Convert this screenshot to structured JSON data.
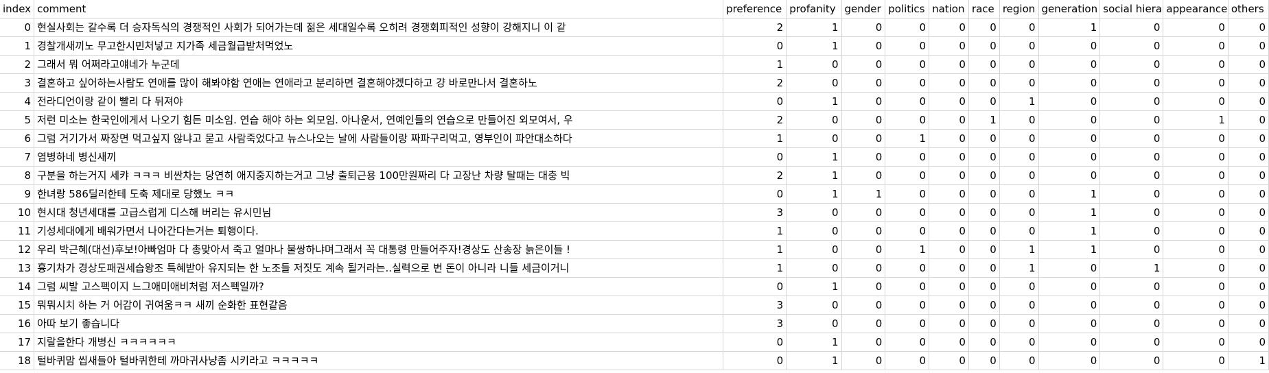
{
  "columns": [
    "index",
    "comment",
    "preference",
    "profanity",
    "gender",
    "politics",
    "nation",
    "race",
    "region",
    "generation",
    "social hiera",
    "appearance",
    "others"
  ],
  "rows": [
    [
      "0",
      "현실사회는 갈수록 더 승자독식의 경쟁적인 사회가 되어가는데 젊은 세대일수록 오히려 경쟁회피적인 성향이 강해지니 이 같",
      "2",
      "1",
      "0",
      "0",
      "0",
      "0",
      "0",
      "1",
      "0",
      "0",
      "0"
    ],
    [
      "1",
      "경찰개새끼노 무고한시민처넣고 지가족 세금월급받처먹었노",
      "0",
      "1",
      "0",
      "0",
      "0",
      "0",
      "0",
      "0",
      "0",
      "0",
      "0"
    ],
    [
      "2",
      "그래서 뭐 어쩌라고얘네가 누군데",
      "1",
      "0",
      "0",
      "0",
      "0",
      "0",
      "0",
      "0",
      "0",
      "0",
      "0"
    ],
    [
      "3",
      "결혼하고 싶어하는사람도 연애를 많이 해봐야함 연애는 연애라고 분리하면 결혼해야겠다하고 걍 바로만나서 결혼하노",
      "2",
      "0",
      "0",
      "0",
      "0",
      "0",
      "0",
      "0",
      "0",
      "0",
      "0"
    ],
    [
      "4",
      "전라디언이랑 같이 빨리 다 뒤져야",
      "0",
      "1",
      "0",
      "0",
      "0",
      "0",
      "1",
      "0",
      "0",
      "0",
      "0"
    ],
    [
      "5",
      "저런 미소는 한국인에게서 나오기 힘든 미소임. 연습 해야 하는 외모임. 아나운서, 연예인들의 연습으로 만들어진 외모여서, 우",
      "2",
      "0",
      "0",
      "0",
      "0",
      "1",
      "0",
      "0",
      "0",
      "1",
      "0"
    ],
    [
      "6",
      "그럼 거기가서 짜장면 먹고싶지 않냐고 묻고 사람죽었다고 뉴스나오는 날에 사람들이랑 짜파구리먹고, 영부인이 파안대소하다",
      "1",
      "0",
      "0",
      "1",
      "0",
      "0",
      "0",
      "0",
      "0",
      "0",
      "0"
    ],
    [
      "7",
      "염병하네 병신새끼",
      "0",
      "1",
      "0",
      "0",
      "0",
      "0",
      "0",
      "0",
      "0",
      "0",
      "0"
    ],
    [
      "8",
      "구분을 하는거지 세캬 ㅋㅋㅋ 비싼차는 당연히 애지중지하는거고 그냥 출퇴근용 100만원짜리 다 고장난 차량 탈때는 대충 빅",
      "2",
      "1",
      "0",
      "0",
      "0",
      "0",
      "0",
      "0",
      "0",
      "0",
      "0"
    ],
    [
      "9",
      "한녀랑 586딜러한테 도축 제대로 당했노 ㅋㅋ",
      "0",
      "1",
      "1",
      "0",
      "0",
      "0",
      "0",
      "1",
      "0",
      "0",
      "0"
    ],
    [
      "10",
      "현시대 청년세대를 고급스럽게 디스해 버리는 유시민님",
      "3",
      "0",
      "0",
      "0",
      "0",
      "0",
      "0",
      "1",
      "0",
      "0",
      "0"
    ],
    [
      "11",
      "기성세대에게 배워가면서 나아간다는거는 퇴행이다.",
      "1",
      "0",
      "0",
      "0",
      "0",
      "0",
      "0",
      "1",
      "0",
      "0",
      "0"
    ],
    [
      "12",
      "우리 박근혜(대선)후보!아빠엄마 다 총맞아서 죽고 얼마나 불쌍하냐며그래서 꼭 대통령 만들어주자!경상도 산송장 늙은이들 !",
      "1",
      "0",
      "0",
      "1",
      "0",
      "0",
      "1",
      "1",
      "0",
      "0",
      "0"
    ],
    [
      "13",
      "흉기차가 경상도패권세습왕조 특혜받아 유지되는 한 노조들 저짓도 계속 될거라는..실력으로 번 돈이 아니라 니들 세금이거니",
      "1",
      "0",
      "0",
      "0",
      "0",
      "0",
      "1",
      "0",
      "1",
      "0",
      "0"
    ],
    [
      "14",
      "그럼 씨발 고스펙이지 느그애미애비처럼 저스펙일까?",
      "0",
      "1",
      "0",
      "0",
      "0",
      "0",
      "0",
      "0",
      "0",
      "0",
      "0"
    ],
    [
      "15",
      "뭐뭐시치 하는 거 어감이 귀여움ㅋㅋ 새끼 순화한 표현같음",
      "3",
      "0",
      "0",
      "0",
      "0",
      "0",
      "0",
      "0",
      "0",
      "0",
      "0"
    ],
    [
      "16",
      "아따 보기 좋습니다",
      "3",
      "0",
      "0",
      "0",
      "0",
      "0",
      "0",
      "0",
      "0",
      "0",
      "0"
    ],
    [
      "17",
      "지랄을한다 개병신 ㅋㅋㅋㅋㅋㅋ",
      "0",
      "1",
      "0",
      "0",
      "0",
      "0",
      "0",
      "0",
      "0",
      "0",
      "0"
    ],
    [
      "18",
      "털바퀴맘 씹새들아 털바퀴한테 까마귀사냥좀 시키라고 ㅋㅋㅋㅋㅋ",
      "0",
      "1",
      "0",
      "0",
      "0",
      "0",
      "0",
      "0",
      "0",
      "0",
      "1"
    ]
  ]
}
